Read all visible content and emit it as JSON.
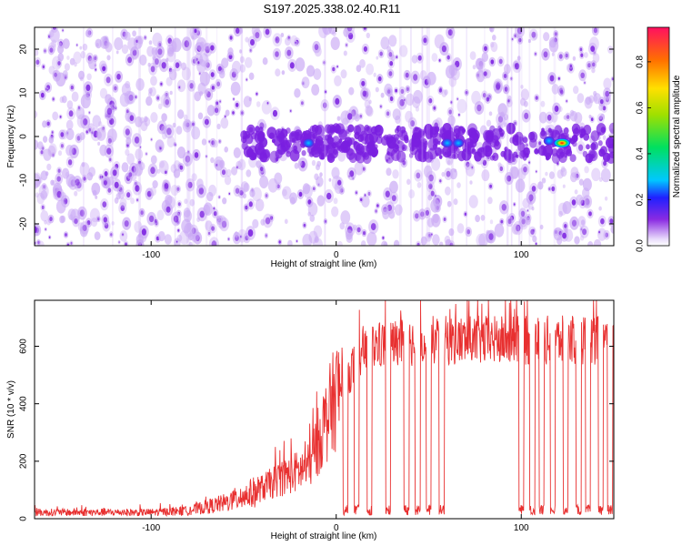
{
  "title": "S197.2025.338.02.40.R11",
  "colors": {
    "snr_line": "#e83030",
    "spectrogram_core": "#7a1fe0",
    "spectrogram_halo": "#c9a8f5",
    "axis": "#000000"
  },
  "chart_data": [
    {
      "type": "heatmap",
      "title": "S197.2025.338.02.40.R11",
      "xlabel": "Height of straight line (km)",
      "ylabel": "Frequency (Hz)",
      "xlim": [
        -163,
        150
      ],
      "ylim": [
        -25,
        25
      ],
      "xticks": [
        -100,
        0,
        100
      ],
      "xtick_labels": [
        "-100",
        "0",
        "100"
      ],
      "yticks": [
        -20,
        -10,
        0,
        10,
        20
      ],
      "ytick_labels": [
        "-20",
        "-10",
        "0",
        "10",
        "20"
      ],
      "colorbar": {
        "label": "Normalized spectral amplitude",
        "range": [
          0,
          0.95
        ],
        "ticks": [
          0.0,
          0.2,
          0.4,
          0.6,
          0.8
        ],
        "tick_labels": [
          "0.0",
          "0.2",
          "0.4",
          "0.6",
          "0.8"
        ],
        "colormap": "rainbow"
      },
      "features": [
        {
          "description": "horizontal band near 0 Hz",
          "x_range": [
            -50,
            150
          ],
          "y": -1.5
        },
        {
          "hotspot_x": -15,
          "hotspot_y": -1.5,
          "amplitude": 0.2
        },
        {
          "hotspot_x": 60,
          "hotspot_y": -1.5,
          "amplitude": 0.2
        },
        {
          "hotspot_x": 66,
          "hotspot_y": -1.5,
          "amplitude": 0.25
        },
        {
          "hotspot_x": 115,
          "hotspot_y": -1.0,
          "amplitude": 0.25
        },
        {
          "hotspot_x": 122,
          "hotspot_y": -1.5,
          "amplitude": 0.9
        }
      ]
    },
    {
      "type": "line",
      "xlabel": "Height of straight line (km)",
      "ylabel": "SNR (10 * v/v)",
      "xlim": [
        -163,
        150
      ],
      "ylim": [
        0,
        760
      ],
      "xticks": [
        -100,
        0,
        100
      ],
      "xtick_labels": [
        "-100",
        "0",
        "100"
      ],
      "yticks": [
        0,
        200,
        400,
        600
      ],
      "ytick_labels": [
        "0",
        "200",
        "400",
        "600"
      ],
      "series": [
        {
          "name": "SNR",
          "envelope_x": [
            -163,
            -100,
            -80,
            -60,
            -45,
            -30,
            -15,
            -8,
            0,
            5,
            10,
            15,
            20,
            30,
            50,
            100,
            150
          ],
          "envelope_mean": [
            22,
            22,
            28,
            55,
            90,
            140,
            180,
            300,
            430,
            480,
            540,
            580,
            600,
            610,
            620,
            620,
            620
          ],
          "dropouts_x": [
            5,
            11,
            18,
            28,
            38,
            44,
            50,
            57,
            100,
            106,
            111,
            117,
            124,
            131,
            136,
            143,
            148
          ],
          "dropout_level": 30
        }
      ]
    }
  ]
}
